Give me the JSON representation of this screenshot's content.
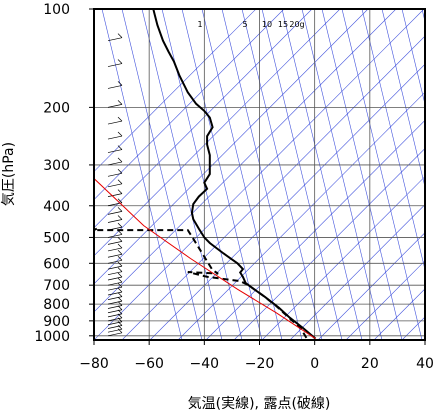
{
  "chart_data": {
    "type": "line",
    "xlabel": "気温(実線), 露点(破線)",
    "ylabel": "気圧(hPa)",
    "xlim": [
      -80,
      40
    ],
    "ylim": [
      1030,
      100
    ],
    "y_scale": "log",
    "x_ticks": [
      -80,
      -60,
      -40,
      -20,
      0,
      20,
      40
    ],
    "x_tick_labels": [
      "−80",
      "−60",
      "−40",
      "−20",
      "0",
      "20",
      "40"
    ],
    "y_ticks": [
      100,
      200,
      300,
      400,
      500,
      600,
      700,
      800,
      900,
      1000
    ],
    "y_tick_labels": [
      "100",
      "200",
      "300",
      "400",
      "500",
      "600",
      "700",
      "800",
      "900",
      "1000"
    ],
    "grid": true,
    "mixing_ratio_labels": [
      "1",
      "5",
      "10",
      "15",
      "20g"
    ],
    "mixing_ratio_values": [
      1,
      5,
      10,
      15,
      20
    ],
    "series": [
      {
        "style": "solid",
        "color": "#000000",
        "points": [
          [
            0.3,
            1020
          ],
          [
            -4,
            950
          ],
          [
            -9,
            880
          ],
          [
            -13,
            820
          ],
          [
            -18,
            760
          ],
          [
            -22,
            720
          ],
          [
            -25,
            690
          ],
          [
            -26,
            660
          ],
          [
            -27,
            640
          ],
          [
            -26,
            625
          ],
          [
            -28,
            600
          ],
          [
            -33,
            560
          ],
          [
            -38,
            520
          ],
          [
            -40,
            500
          ],
          [
            -42,
            470
          ],
          [
            -44,
            440
          ],
          [
            -44.5,
            420
          ],
          [
            -44,
            395
          ],
          [
            -42,
            375
          ],
          [
            -39,
            355
          ],
          [
            -40,
            340
          ],
          [
            -38,
            320
          ],
          [
            -38,
            300
          ],
          [
            -38,
            280
          ],
          [
            -39,
            260
          ],
          [
            -39,
            245
          ],
          [
            -37,
            230
          ],
          [
            -38,
            215
          ],
          [
            -40,
            205
          ],
          [
            -43,
            195
          ],
          [
            -46,
            180
          ],
          [
            -49,
            160
          ],
          [
            -51,
            145
          ],
          [
            -53,
            135
          ],
          [
            -55,
            125
          ],
          [
            -57,
            112
          ],
          [
            -58,
            104
          ],
          [
            -58.5,
            100
          ]
        ]
      },
      {
        "style": "dashed",
        "color": "#000000",
        "points": [
          [
            -3,
            1015
          ],
          [
            -5,
            950
          ],
          [
            -10,
            870
          ],
          [
            -14,
            810
          ],
          [
            -19,
            750
          ],
          [
            -24,
            700
          ],
          [
            -27,
            680
          ],
          [
            -39,
            660
          ],
          [
            -46,
            638
          ],
          [
            -35,
            645
          ],
          [
            -37,
            630
          ],
          [
            -44,
            505
          ],
          [
            -46,
            475
          ],
          [
            -80,
            475
          ],
          [
            -79,
            470
          ]
        ]
      },
      {
        "style": "solid",
        "color": "#e60000",
        "points": [
          [
            0.3,
            1020
          ],
          [
            -14,
            850
          ],
          [
            -28,
            720
          ],
          [
            -45,
            580
          ],
          [
            -62,
            460
          ],
          [
            -80,
            330
          ]
        ]
      }
    ]
  }
}
